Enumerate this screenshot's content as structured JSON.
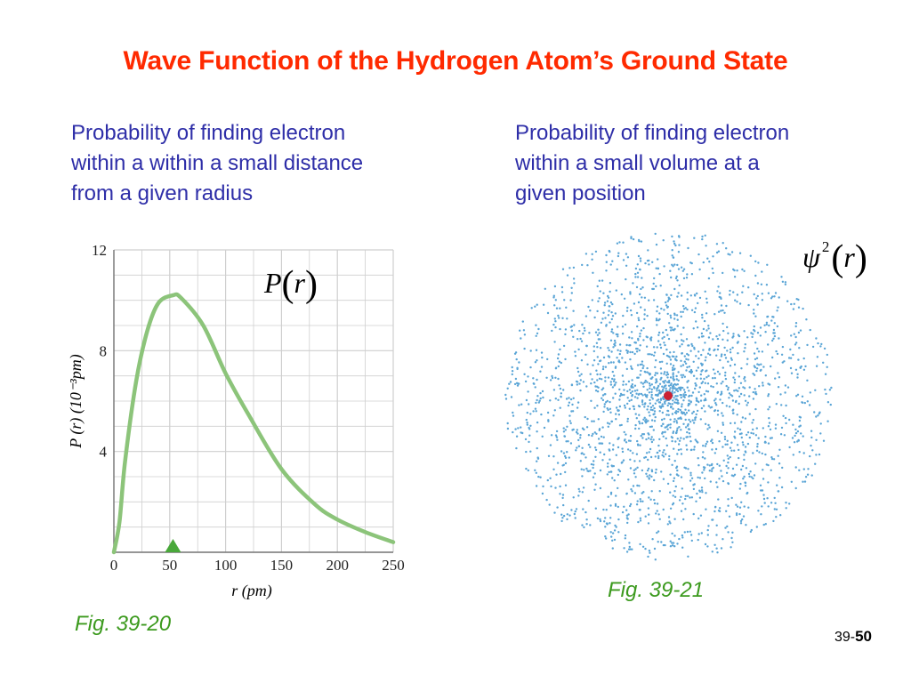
{
  "slide": {
    "title": "Wave Function of the Hydrogen Atom’s Ground State",
    "left_description": [
      "Probability of finding electron",
      "within a within a small distance",
      "from a given radius"
    ],
    "right_description": [
      "Probability of finding electron",
      "within a small volume at a",
      "given position"
    ],
    "left_figure_caption": "Fig. 39-20",
    "right_figure_caption": "Fig. 39-21",
    "slide_number_prefix": "39-",
    "slide_number": "50"
  },
  "formulas": {
    "radial": {
      "symbol": "P",
      "open": "(",
      "variable": "r",
      "close": ")"
    },
    "density": {
      "symbol": "ψ",
      "power": "2",
      "open": "(",
      "variable": "r",
      "close": ")"
    }
  },
  "colors": {
    "title": "#ff2a00",
    "description": "#2e2ea8",
    "caption": "#3c9a1e",
    "curve": "#8cc47a",
    "marker": "#49a83a",
    "grid": "#cfcfcf",
    "dots": "#5aa5d6",
    "nucleus": "#cc2233"
  },
  "chart_data": [
    {
      "type": "line",
      "xlabel": "r (pm)",
      "ylabel": "P (r) (10⁻³pm)",
      "x_ticks": [
        0,
        50,
        100,
        150,
        200,
        250
      ],
      "y_ticks": [
        0,
        4,
        8,
        12
      ],
      "xlim": [
        0,
        250
      ],
      "ylim": [
        0,
        12
      ],
      "grid": true,
      "series": [
        {
          "x": [
            0,
            5,
            10,
            20,
            30,
            40,
            52.9,
            60,
            80,
            100,
            120,
            150,
            180,
            200,
            225,
            250
          ],
          "y": [
            0,
            1.2,
            3.6,
            6.8,
            8.8,
            9.9,
            10.2,
            10.1,
            9.0,
            7.1,
            5.5,
            3.3,
            1.9,
            1.3,
            0.8,
            0.4
          ]
        }
      ],
      "annotations": [
        {
          "type": "marker",
          "shape": "triangle",
          "x": 52.9,
          "y": 0
        }
      ]
    },
    {
      "type": "scatter",
      "description_hidden": false,
      "center_marker": "nucleus"
    }
  ]
}
